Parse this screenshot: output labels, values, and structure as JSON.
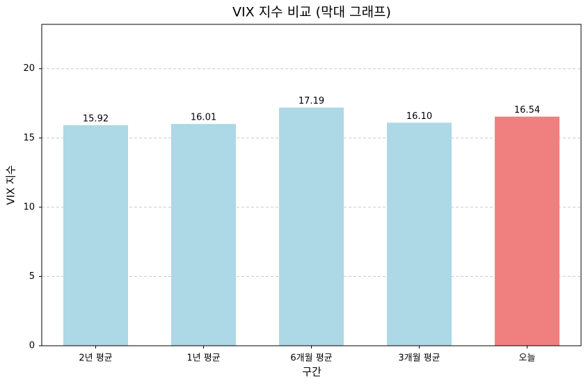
{
  "chart_data": {
    "type": "bar",
    "title": "VIX 지수 비교 (막대 그래프)",
    "x_label": "구간",
    "y_label": "VIX 지수",
    "categories": [
      "2년 평균",
      "1년 평균",
      "6개월 평균",
      "3개월 평균",
      "오늘"
    ],
    "values": [
      15.92,
      16.01,
      17.19,
      16.1,
      16.54
    ],
    "value_labels": [
      "15.92",
      "16.01",
      "17.19",
      "16.10",
      "16.54"
    ],
    "colors": [
      "#add8e6",
      "#add8e6",
      "#add8e6",
      "#add8e6",
      "#f08080"
    ],
    "ylim": [
      0,
      23.2
    ],
    "yticks": [
      0,
      5,
      10,
      15,
      20
    ],
    "grid": true
  }
}
